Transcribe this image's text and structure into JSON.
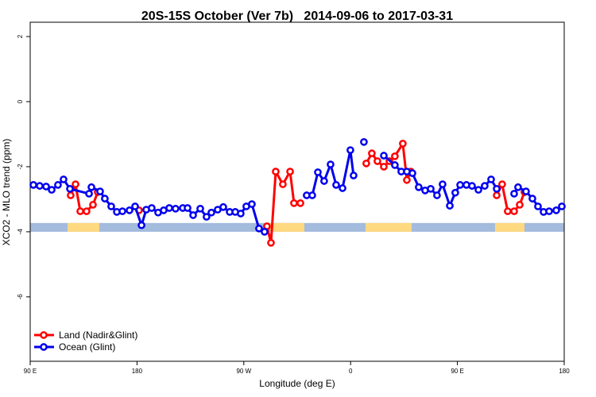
{
  "chart_data": {
    "type": "line",
    "title": "20S-15S October (Ver 7b)   2014-09-06 to 2017-03-31",
    "xlabel": "Longitude (deg E)",
    "ylabel": "XCO2 - MLO trend (ppm)",
    "xlim": [
      90,
      540
    ],
    "xticks": [
      {
        "value": 90,
        "label": "90 E"
      },
      {
        "value": 180,
        "label": "180"
      },
      {
        "value": 270,
        "label": "90 W"
      },
      {
        "value": 360,
        "label": "0"
      },
      {
        "value": 450,
        "label": "90 E"
      },
      {
        "value": 540,
        "label": "180"
      }
    ],
    "ylim": [
      -7.98,
      2.44
    ],
    "yticks": [
      2,
      0,
      -2,
      -4,
      -6
    ],
    "legend": "bottom-left",
    "band": {
      "ylim": [
        -3.73,
        -4.0
      ],
      "color": "#a3bbdd",
      "land_color": "#ffd980",
      "land_x": [
        [
          121.5,
          148.3
        ],
        [
          292.2,
          321.0
        ],
        [
          372.6,
          411.4
        ],
        [
          481.7,
          506.5
        ]
      ]
    },
    "series": [
      {
        "name": "Land (Nadir&Glint)",
        "color": "#ff0000",
        "x": [
          124.1,
          128.2,
          132.2,
          137.5,
          142.9,
          146.9,
          null,
          181.7,
          null,
          289.5,
          292.9,
          296.9,
          302.9,
          309.0,
          312.3,
          317.7,
          null,
          373.2,
          377.9,
          382.6,
          388.0,
          392.7,
          397.3,
          404.0,
          407.4,
          410.7,
          null,
          483.1,
          487.7,
          492.4,
          497.8,
          502.5,
          506.5
        ],
        "values": [
          -2.88,
          -2.54,
          -3.37,
          -3.37,
          -3.17,
          -2.78,
          null,
          -3.34,
          null,
          -3.83,
          -4.34,
          -2.15,
          -2.54,
          -2.15,
          -3.12,
          -3.12,
          null,
          -1.9,
          -1.59,
          -1.83,
          -2.0,
          -1.83,
          -1.68,
          -1.29,
          -2.41,
          -2.15,
          null,
          -2.88,
          -2.54,
          -3.37,
          -3.37,
          -3.17,
          -2.78
        ]
      },
      {
        "name": "Ocean (Glint)",
        "color": "#0000ee",
        "x": [
          92.7,
          98.0,
          103.4,
          108.1,
          113.4,
          118.1,
          123.5,
          139.6,
          141.6,
          148.9,
          152.9,
          158.3,
          163.0,
          167.7,
          173.7,
          178.4,
          183.8,
          187.8,
          192.4,
          197.8,
          202.5,
          207.2,
          212.5,
          218.6,
          222.6,
          227.3,
          233.3,
          238.6,
          242.7,
          248.0,
          252.7,
          258.1,
          262.8,
          267.4,
          272.1,
          276.8,
          282.8,
          287.5,
          null,
          323.0,
          327.7,
          332.4,
          337.7,
          343.1,
          347.8,
          353.2,
          359.8,
          362.5,
          null,
          371.2,
          null,
          388.0,
          397.3,
          402.7,
          407.4,
          412.1,
          417.4,
          422.8,
          427.5,
          432.8,
          437.5,
          443.6,
          448.2,
          452.3,
          457.6,
          462.3,
          467.7,
          473.0,
          478.4,
          483.1,
          null,
          497.8,
          501.1,
          507.8,
          513.2,
          517.9,
          522.6,
          527.3,
          533.3,
          538.0
        ],
        "values": [
          -2.56,
          -2.59,
          -2.61,
          -2.71,
          -2.56,
          -2.39,
          -2.68,
          -2.83,
          -2.63,
          -2.76,
          -2.98,
          -3.22,
          -3.39,
          -3.37,
          -3.34,
          -3.22,
          -3.8,
          -3.32,
          -3.27,
          -3.41,
          -3.34,
          -3.27,
          -3.29,
          -3.27,
          -3.27,
          -3.49,
          -3.29,
          -3.54,
          -3.41,
          -3.32,
          -3.24,
          -3.39,
          -3.39,
          -3.44,
          -3.22,
          -3.15,
          -3.9,
          -4.0,
          null,
          -2.88,
          -2.88,
          -2.17,
          -2.44,
          -1.93,
          -2.56,
          -2.66,
          -1.49,
          -2.27,
          null,
          -1.24,
          null,
          -1.66,
          -1.95,
          -2.15,
          -2.15,
          -2.2,
          -2.63,
          -2.73,
          -2.68,
          -2.88,
          -2.54,
          -3.2,
          -2.8,
          -2.56,
          -2.56,
          -2.59,
          -2.71,
          -2.59,
          -2.39,
          -2.68,
          null,
          -2.83,
          -2.63,
          -2.76,
          -2.98,
          -3.22,
          -3.39,
          -3.37,
          -3.34,
          -3.22
        ]
      }
    ]
  }
}
